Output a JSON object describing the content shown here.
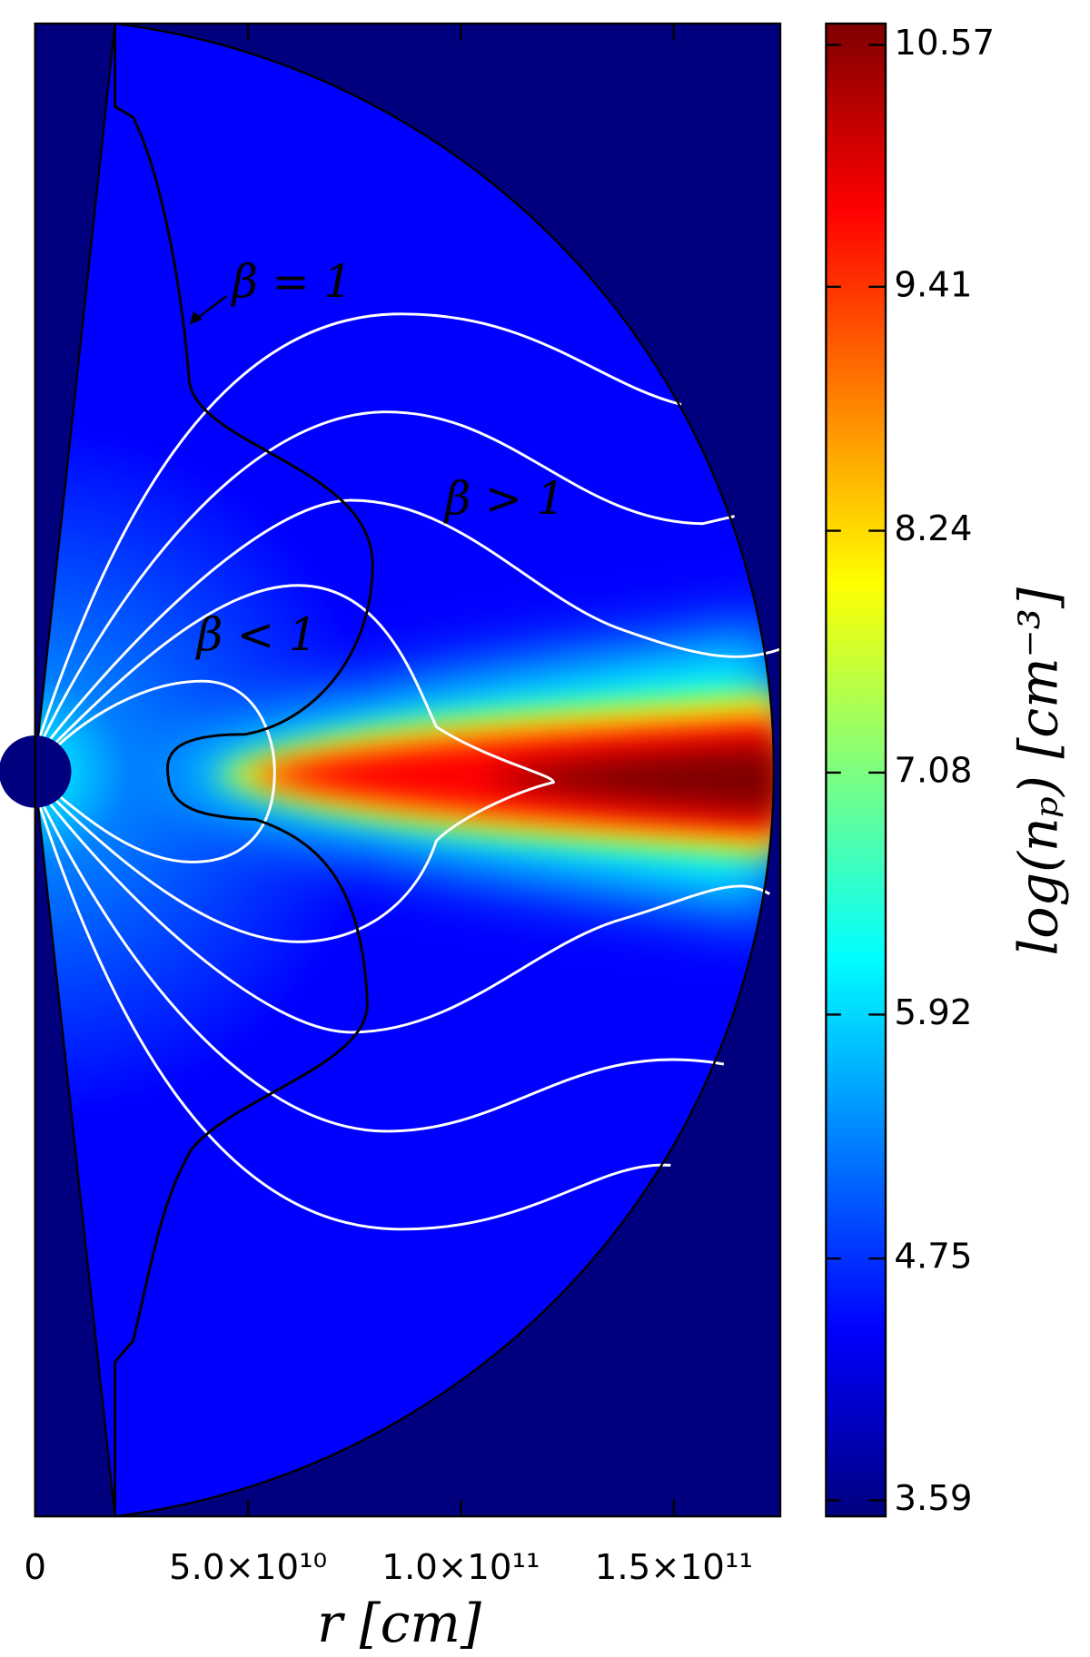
{
  "chart_data": {
    "type": "heatmap",
    "xlabel": "r [cm]",
    "colorbar_label": "log(nₚ) [cm⁻³]",
    "xlim": [
      0,
      175000000000
    ],
    "xticks": [
      0,
      {
        "value": 50000000000,
        "label": "5.0×10¹⁰"
      },
      {
        "value": 100000000000,
        "label": "1.0×10¹¹"
      },
      {
        "value": 150000000000,
        "label": "1.5×10¹¹"
      }
    ],
    "clim": [
      3.59,
      10.57
    ],
    "cticks": [
      3.59,
      4.75,
      5.92,
      7.08,
      8.24,
      9.41,
      10.57
    ],
    "colormap": [
      "#00007f",
      "#0000ff",
      "#007fff",
      "#00ffff",
      "#7fff7f",
      "#ffff00",
      "#ff7f00",
      "#ff0000",
      "#7f0000"
    ],
    "annotations": [
      "β = 1",
      "β > 1",
      "β < 1"
    ]
  }
}
